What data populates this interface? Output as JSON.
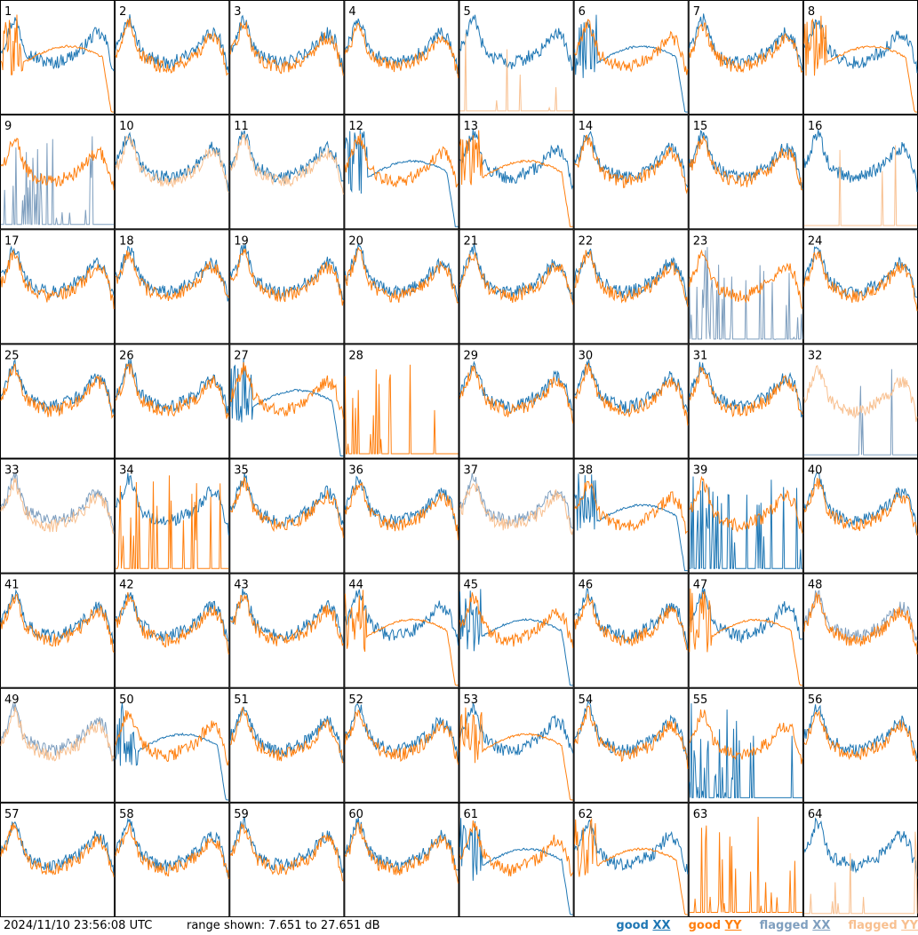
{
  "footer": {
    "timestamp": "2024/11/10 23:56:08 UTC",
    "range_text": "range shown: 7.651 to 27.651 dB"
  },
  "legend": [
    {
      "label_a": "good",
      "label_b": "XX",
      "color": "#1f77b4"
    },
    {
      "label_a": "good",
      "label_b": "YY",
      "color": "#ff7f0e"
    },
    {
      "label_a": "flagged",
      "label_b": "XX",
      "color": "#7f9fbf"
    },
    {
      "label_a": "flagged",
      "label_b": "YY",
      "color": "#f8c090"
    }
  ],
  "colors": {
    "good_xx": "#1f77b4",
    "good_yy": "#ff7f0e",
    "flagged_xx": "#7f9fbf",
    "flagged_yy": "#f8c090"
  },
  "chart_data": {
    "type": "line",
    "y_range_db": [
      7.651,
      27.651
    ],
    "grid_layout": {
      "rows": 8,
      "cols": 8
    },
    "panels": [
      {
        "n": "1",
        "xx": "good",
        "yy": "good",
        "xx_shape": "normal",
        "yy_shape": "decay"
      },
      {
        "n": "2",
        "xx": "good",
        "yy": "good",
        "xx_shape": "normal",
        "yy_shape": "normal"
      },
      {
        "n": "3",
        "xx": "good",
        "yy": "good",
        "xx_shape": "normal",
        "yy_shape": "normal"
      },
      {
        "n": "4",
        "xx": "good",
        "yy": "good",
        "xx_shape": "normal",
        "yy_shape": "normal"
      },
      {
        "n": "5",
        "xx": "good",
        "yy": "flagged",
        "xx_shape": "normal",
        "yy_shape": "flat"
      },
      {
        "n": "6",
        "xx": "good",
        "yy": "good",
        "xx_shape": "decay",
        "yy_shape": "normal"
      },
      {
        "n": "7",
        "xx": "good",
        "yy": "good",
        "xx_shape": "normal",
        "yy_shape": "normal"
      },
      {
        "n": "8",
        "xx": "good",
        "yy": "good",
        "xx_shape": "normal",
        "yy_shape": "decay"
      },
      {
        "n": "9",
        "xx": "flagged",
        "yy": "good",
        "xx_shape": "spikes",
        "yy_shape": "normal"
      },
      {
        "n": "10",
        "xx": "good",
        "yy": "flagged",
        "xx_shape": "normal",
        "yy_shape": "normal"
      },
      {
        "n": "11",
        "xx": "good",
        "yy": "flagged",
        "xx_shape": "normal",
        "yy_shape": "normal"
      },
      {
        "n": "12",
        "xx": "good",
        "yy": "good",
        "xx_shape": "decay",
        "yy_shape": "normal"
      },
      {
        "n": "13",
        "xx": "good",
        "yy": "good",
        "xx_shape": "normal",
        "yy_shape": "decay"
      },
      {
        "n": "14",
        "xx": "good",
        "yy": "good",
        "xx_shape": "normal",
        "yy_shape": "normal"
      },
      {
        "n": "15",
        "xx": "good",
        "yy": "good",
        "xx_shape": "normal",
        "yy_shape": "normal"
      },
      {
        "n": "16",
        "xx": "good",
        "yy": "flagged",
        "xx_shape": "normal",
        "yy_shape": "flat"
      },
      {
        "n": "17",
        "xx": "good",
        "yy": "good",
        "xx_shape": "normal",
        "yy_shape": "normal"
      },
      {
        "n": "18",
        "xx": "good",
        "yy": "good",
        "xx_shape": "normal",
        "yy_shape": "normal"
      },
      {
        "n": "19",
        "xx": "good",
        "yy": "good",
        "xx_shape": "normal",
        "yy_shape": "normal"
      },
      {
        "n": "20",
        "xx": "good",
        "yy": "good",
        "xx_shape": "normal",
        "yy_shape": "normal"
      },
      {
        "n": "21",
        "xx": "good",
        "yy": "good",
        "xx_shape": "normal",
        "yy_shape": "normal"
      },
      {
        "n": "22",
        "xx": "good",
        "yy": "good",
        "xx_shape": "normal",
        "yy_shape": "normal"
      },
      {
        "n": "23",
        "xx": "flagged",
        "yy": "good",
        "xx_shape": "spikes",
        "yy_shape": "normal"
      },
      {
        "n": "24",
        "xx": "good",
        "yy": "good",
        "xx_shape": "normal",
        "yy_shape": "normal"
      },
      {
        "n": "25",
        "xx": "good",
        "yy": "good",
        "xx_shape": "normal",
        "yy_shape": "normal"
      },
      {
        "n": "26",
        "xx": "good",
        "yy": "good",
        "xx_shape": "normal",
        "yy_shape": "normal"
      },
      {
        "n": "27",
        "xx": "good",
        "yy": "good",
        "xx_shape": "decay",
        "yy_shape": "normal"
      },
      {
        "n": "28",
        "xx": "none",
        "yy": "good",
        "xx_shape": "none",
        "yy_shape": "spikes"
      },
      {
        "n": "29",
        "xx": "good",
        "yy": "good",
        "xx_shape": "normal",
        "yy_shape": "normal"
      },
      {
        "n": "30",
        "xx": "good",
        "yy": "good",
        "xx_shape": "normal",
        "yy_shape": "normal"
      },
      {
        "n": "31",
        "xx": "good",
        "yy": "good",
        "xx_shape": "normal",
        "yy_shape": "normal"
      },
      {
        "n": "32",
        "xx": "flagged",
        "yy": "flagged",
        "xx_shape": "flat",
        "yy_shape": "normal"
      },
      {
        "n": "33",
        "xx": "flagged",
        "yy": "flagged",
        "xx_shape": "normal",
        "yy_shape": "normal"
      },
      {
        "n": "34",
        "xx": "good",
        "yy": "good",
        "xx_shape": "normal",
        "yy_shape": "spikes"
      },
      {
        "n": "35",
        "xx": "good",
        "yy": "good",
        "xx_shape": "normal",
        "yy_shape": "normal"
      },
      {
        "n": "36",
        "xx": "good",
        "yy": "good",
        "xx_shape": "normal",
        "yy_shape": "normal"
      },
      {
        "n": "37",
        "xx": "flagged",
        "yy": "flagged",
        "xx_shape": "normal",
        "yy_shape": "normal"
      },
      {
        "n": "38",
        "xx": "good",
        "yy": "good",
        "xx_shape": "decay",
        "yy_shape": "normal"
      },
      {
        "n": "39",
        "xx": "good",
        "yy": "good",
        "xx_shape": "spikes",
        "yy_shape": "normal"
      },
      {
        "n": "40",
        "xx": "good",
        "yy": "good",
        "xx_shape": "normal",
        "yy_shape": "normal"
      },
      {
        "n": "41",
        "xx": "good",
        "yy": "good",
        "xx_shape": "normal",
        "yy_shape": "normal"
      },
      {
        "n": "42",
        "xx": "good",
        "yy": "good",
        "xx_shape": "normal",
        "yy_shape": "normal"
      },
      {
        "n": "43",
        "xx": "good",
        "yy": "good",
        "xx_shape": "normal",
        "yy_shape": "normal"
      },
      {
        "n": "44",
        "xx": "good",
        "yy": "good",
        "xx_shape": "normal",
        "yy_shape": "decay"
      },
      {
        "n": "45",
        "xx": "good",
        "yy": "good",
        "xx_shape": "decay",
        "yy_shape": "normal"
      },
      {
        "n": "46",
        "xx": "good",
        "yy": "good",
        "xx_shape": "normal",
        "yy_shape": "normal"
      },
      {
        "n": "47",
        "xx": "good",
        "yy": "good",
        "xx_shape": "normal",
        "yy_shape": "decay"
      },
      {
        "n": "48",
        "xx": "flagged",
        "yy": "good",
        "xx_shape": "normal",
        "yy_shape": "normal"
      },
      {
        "n": "49",
        "xx": "flagged",
        "yy": "flagged",
        "xx_shape": "normal",
        "yy_shape": "normal"
      },
      {
        "n": "50",
        "xx": "good",
        "yy": "good",
        "xx_shape": "decay",
        "yy_shape": "normal"
      },
      {
        "n": "51",
        "xx": "good",
        "yy": "good",
        "xx_shape": "normal",
        "yy_shape": "normal"
      },
      {
        "n": "52",
        "xx": "good",
        "yy": "good",
        "xx_shape": "normal",
        "yy_shape": "normal"
      },
      {
        "n": "53",
        "xx": "good",
        "yy": "good",
        "xx_shape": "normal",
        "yy_shape": "decay"
      },
      {
        "n": "54",
        "xx": "good",
        "yy": "good",
        "xx_shape": "normal",
        "yy_shape": "normal"
      },
      {
        "n": "55",
        "xx": "good",
        "yy": "good",
        "xx_shape": "spikes",
        "yy_shape": "normal"
      },
      {
        "n": "56",
        "xx": "good",
        "yy": "good",
        "xx_shape": "normal",
        "yy_shape": "normal"
      },
      {
        "n": "57",
        "xx": "good",
        "yy": "good",
        "xx_shape": "normal",
        "yy_shape": "normal"
      },
      {
        "n": "58",
        "xx": "good",
        "yy": "good",
        "xx_shape": "normal",
        "yy_shape": "normal"
      },
      {
        "n": "59",
        "xx": "good",
        "yy": "good",
        "xx_shape": "normal",
        "yy_shape": "normal"
      },
      {
        "n": "60",
        "xx": "good",
        "yy": "good",
        "xx_shape": "normal",
        "yy_shape": "normal"
      },
      {
        "n": "61",
        "xx": "good",
        "yy": "good",
        "xx_shape": "decay",
        "yy_shape": "normal"
      },
      {
        "n": "62",
        "xx": "good",
        "yy": "good",
        "xx_shape": "normal",
        "yy_shape": "decay"
      },
      {
        "n": "63",
        "xx": "none",
        "yy": "good",
        "xx_shape": "none",
        "yy_shape": "spikes"
      },
      {
        "n": "64",
        "xx": "good",
        "yy": "flagged",
        "xx_shape": "normal",
        "yy_shape": "flat"
      }
    ]
  }
}
